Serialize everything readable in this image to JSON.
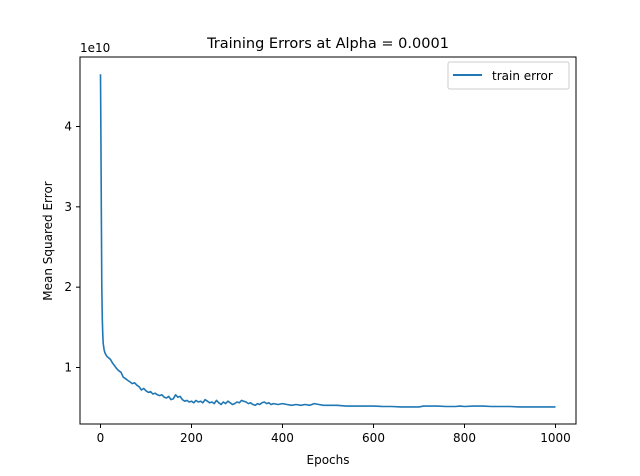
{
  "chart_data": {
    "type": "line",
    "title": "Training Errors at Alpha = 0.0001",
    "xlabel": "Epochs",
    "ylabel": "Mean Squared Error",
    "offset_text": "1e10",
    "xlim": [
      -45,
      1045
    ],
    "ylim": [
      3.6,
      4.85
    ],
    "y_scale_note": "values in units of 1e10",
    "xticks": [
      0,
      200,
      400,
      600,
      800,
      1000
    ],
    "yticks": [
      1,
      2,
      3,
      4
    ],
    "legend_position": "top-right",
    "grid": false,
    "series": [
      {
        "name": "train error",
        "color": "#1f77b4",
        "x": [
          0,
          1,
          2,
          3,
          4,
          5,
          6,
          8,
          10,
          14,
          18,
          22,
          26,
          30,
          35,
          40,
          45,
          50,
          55,
          60,
          65,
          70,
          75,
          80,
          85,
          90,
          95,
          100,
          105,
          110,
          115,
          120,
          125,
          130,
          135,
          140,
          145,
          150,
          155,
          160,
          165,
          170,
          175,
          180,
          185,
          190,
          195,
          200,
          205,
          210,
          215,
          220,
          225,
          230,
          235,
          240,
          245,
          250,
          255,
          260,
          265,
          270,
          275,
          280,
          285,
          290,
          295,
          300,
          305,
          310,
          315,
          320,
          325,
          330,
          335,
          340,
          345,
          350,
          355,
          360,
          365,
          370,
          375,
          380,
          390,
          400,
          410,
          420,
          430,
          440,
          450,
          460,
          470,
          480,
          490,
          500,
          520,
          540,
          560,
          580,
          600,
          620,
          640,
          660,
          680,
          700,
          710,
          720,
          740,
          760,
          780,
          790,
          800,
          820,
          840,
          860,
          880,
          900,
          920,
          940,
          960,
          980,
          1000
        ],
        "values": [
          4.65,
          3.9,
          2.8,
          2.0,
          1.6,
          1.4,
          1.3,
          1.22,
          1.18,
          1.14,
          1.12,
          1.1,
          1.06,
          1.03,
          0.99,
          0.96,
          0.94,
          0.88,
          0.86,
          0.84,
          0.82,
          0.8,
          0.81,
          0.78,
          0.76,
          0.72,
          0.74,
          0.71,
          0.69,
          0.7,
          0.67,
          0.68,
          0.66,
          0.65,
          0.66,
          0.63,
          0.62,
          0.64,
          0.6,
          0.61,
          0.66,
          0.63,
          0.64,
          0.6,
          0.58,
          0.59,
          0.57,
          0.58,
          0.56,
          0.59,
          0.57,
          0.58,
          0.56,
          0.6,
          0.58,
          0.56,
          0.57,
          0.55,
          0.59,
          0.56,
          0.54,
          0.57,
          0.55,
          0.58,
          0.56,
          0.54,
          0.55,
          0.57,
          0.56,
          0.59,
          0.58,
          0.57,
          0.55,
          0.56,
          0.54,
          0.53,
          0.55,
          0.54,
          0.56,
          0.57,
          0.55,
          0.56,
          0.54,
          0.55,
          0.54,
          0.55,
          0.54,
          0.53,
          0.54,
          0.53,
          0.54,
          0.53,
          0.55,
          0.54,
          0.53,
          0.53,
          0.53,
          0.52,
          0.52,
          0.52,
          0.52,
          0.515,
          0.515,
          0.51,
          0.51,
          0.51,
          0.52,
          0.52,
          0.52,
          0.515,
          0.515,
          0.52,
          0.515,
          0.52,
          0.52,
          0.515,
          0.515,
          0.515,
          0.51,
          0.51,
          0.51,
          0.51,
          0.51
        ]
      }
    ]
  }
}
